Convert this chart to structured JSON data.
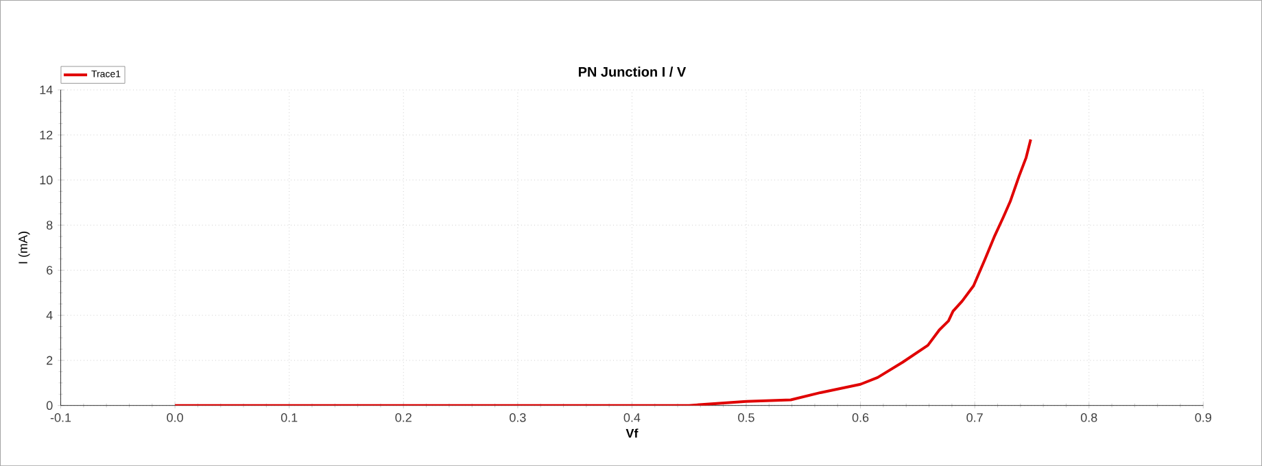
{
  "chart_data": {
    "type": "line",
    "title": "PN Junction I / V",
    "xlabel": "Vf",
    "ylabel": "I (mA)",
    "xlim": [
      -0.1,
      0.9
    ],
    "xticks": [
      {
        "value": -0.1,
        "label": "-0.1"
      },
      {
        "value": 0,
        "label": "0.0"
      },
      0.1,
      0.2,
      0.3,
      0.4,
      0.5,
      0.6,
      0.7,
      0.8,
      0.9
    ],
    "ylim": [
      0,
      14
    ],
    "yticks": [
      0,
      2,
      4,
      6,
      8,
      10,
      12,
      14
    ],
    "grid": true,
    "legend": "top left",
    "line_style": "solid",
    "marker": "none",
    "series": [
      {
        "name": "Trace1",
        "color": "#e00000",
        "x": [
          0.0,
          0.1,
          0.2,
          0.3,
          0.4,
          0.45,
          0.5,
          0.539,
          0.565,
          0.6,
          0.615,
          0.637,
          0.659,
          0.669,
          0.677,
          0.681,
          0.689,
          0.699,
          0.709,
          0.717,
          0.725,
          0.731,
          0.739,
          0.745,
          0.749
        ],
        "values": [
          0,
          0,
          0,
          0,
          0,
          0,
          0.18,
          0.25,
          0.57,
          0.94,
          1.24,
          1.92,
          2.67,
          3.35,
          3.75,
          4.18,
          4.63,
          5.31,
          6.49,
          7.47,
          8.35,
          9.04,
          10.2,
          11.0,
          11.8
        ]
      }
    ]
  }
}
